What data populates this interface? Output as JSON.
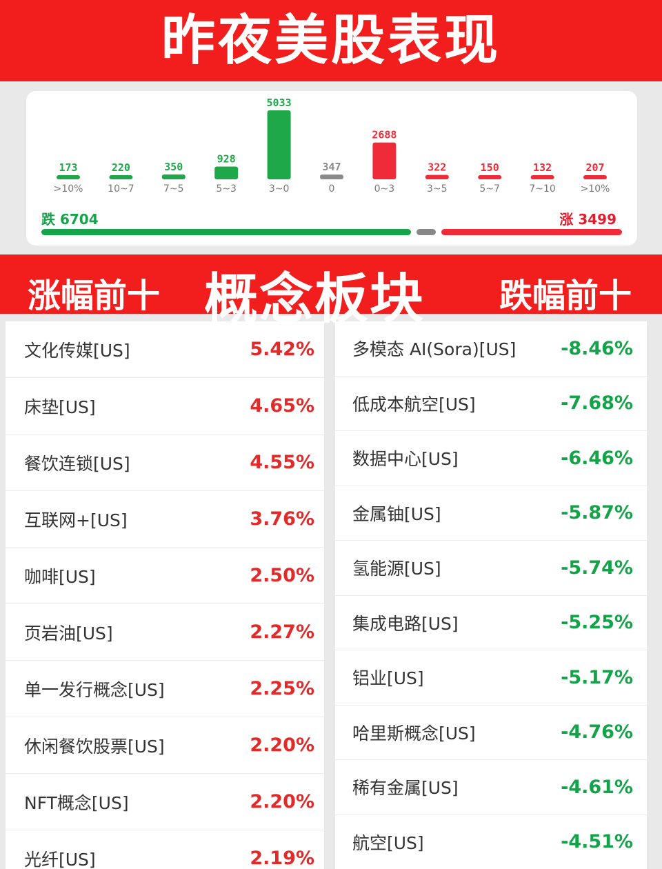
{
  "header": {
    "title": "昨夜美股表现"
  },
  "chart_data": {
    "type": "bar",
    "categories": [
      ">10%",
      "10~7",
      "7~5",
      "5~3",
      "3~0",
      "0",
      "0~3",
      "3~5",
      "5~7",
      "7~10",
      ">10%"
    ],
    "values": [
      173,
      220,
      350,
      928,
      5033,
      347,
      2688,
      322,
      150,
      132,
      207
    ],
    "colors": [
      "#1fa84a",
      "#1fa84a",
      "#1fa84a",
      "#1fa84a",
      "#1fa84a",
      "#8a8a8a",
      "#ef2b3a",
      "#ef2b3a",
      "#ef2b3a",
      "#ef2b3a",
      "#ef2b3a"
    ],
    "fall_label": "跌 6704",
    "rise_label": "涨 3499",
    "fall_total": 6704,
    "rise_total": 3499
  },
  "section": {
    "left_label": "涨幅前十",
    "center_label": "概念板块",
    "right_label": "跌幅前十"
  },
  "top_gainers": [
    {
      "name": "文化传媒[US]",
      "change": "5.42%"
    },
    {
      "name": "床垫[US]",
      "change": "4.65%"
    },
    {
      "name": "餐饮连锁[US]",
      "change": "4.55%"
    },
    {
      "name": "互联网+[US]",
      "change": "3.76%"
    },
    {
      "name": "咖啡[US]",
      "change": "2.50%"
    },
    {
      "name": "页岩油[US]",
      "change": "2.27%"
    },
    {
      "name": "单一发行概念[US]",
      "change": "2.25%"
    },
    {
      "name": "休闲餐饮股票[US]",
      "change": "2.20%"
    },
    {
      "name": "NFT概念[US]",
      "change": "2.20%"
    },
    {
      "name": "光纤[US]",
      "change": "2.19%"
    }
  ],
  "top_losers": [
    {
      "name": "多模态 AI(Sora)[US]",
      "change": "-8.46%"
    },
    {
      "name": "低成本航空[US]",
      "change": "-7.68%"
    },
    {
      "name": "数据中心[US]",
      "change": "-6.46%"
    },
    {
      "name": "金属铀[US]",
      "change": "-5.87%"
    },
    {
      "name": "氢能源[US]",
      "change": "-5.74%"
    },
    {
      "name": "集成电路[US]",
      "change": "-5.25%"
    },
    {
      "name": "铝业[US]",
      "change": "-5.17%"
    },
    {
      "name": "哈里斯概念[US]",
      "change": "-4.76%"
    },
    {
      "name": "稀有金属[US]",
      "change": "-4.61%"
    },
    {
      "name": "航空[US]",
      "change": "-4.51%"
    }
  ]
}
